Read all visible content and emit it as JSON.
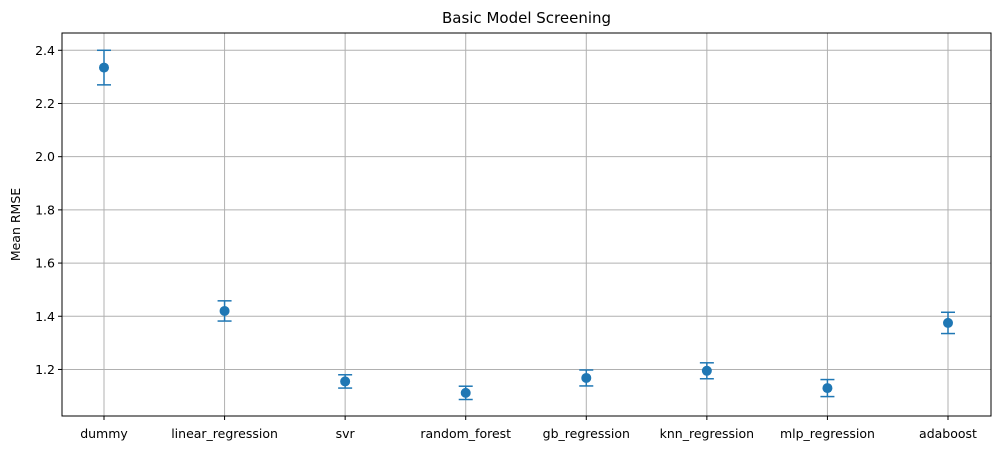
{
  "chart_data": {
    "type": "scatter",
    "title": "Basic Model Screening",
    "xlabel": "",
    "ylabel": "Mean RMSE",
    "categories": [
      "dummy",
      "linear_regression",
      "svr",
      "random_forest",
      "gb_regression",
      "knn_regression",
      "mlp_regression",
      "adaboost"
    ],
    "values": [
      2.335,
      1.42,
      1.155,
      1.112,
      1.168,
      1.195,
      1.13,
      1.375
    ],
    "errors": [
      0.065,
      0.038,
      0.025,
      0.025,
      0.03,
      0.03,
      0.032,
      0.04
    ],
    "ylim": [
      1.025,
      2.465
    ],
    "yticks": [
      1.2,
      1.4,
      1.6,
      1.8,
      2.0,
      2.2,
      2.4
    ],
    "ytick_labels": [
      "1.2",
      "1.4",
      "1.6",
      "1.8",
      "2.0",
      "2.2",
      "2.4"
    ],
    "grid": true,
    "color": "#1f77b4",
    "grid_color": "#b0b0b0"
  }
}
